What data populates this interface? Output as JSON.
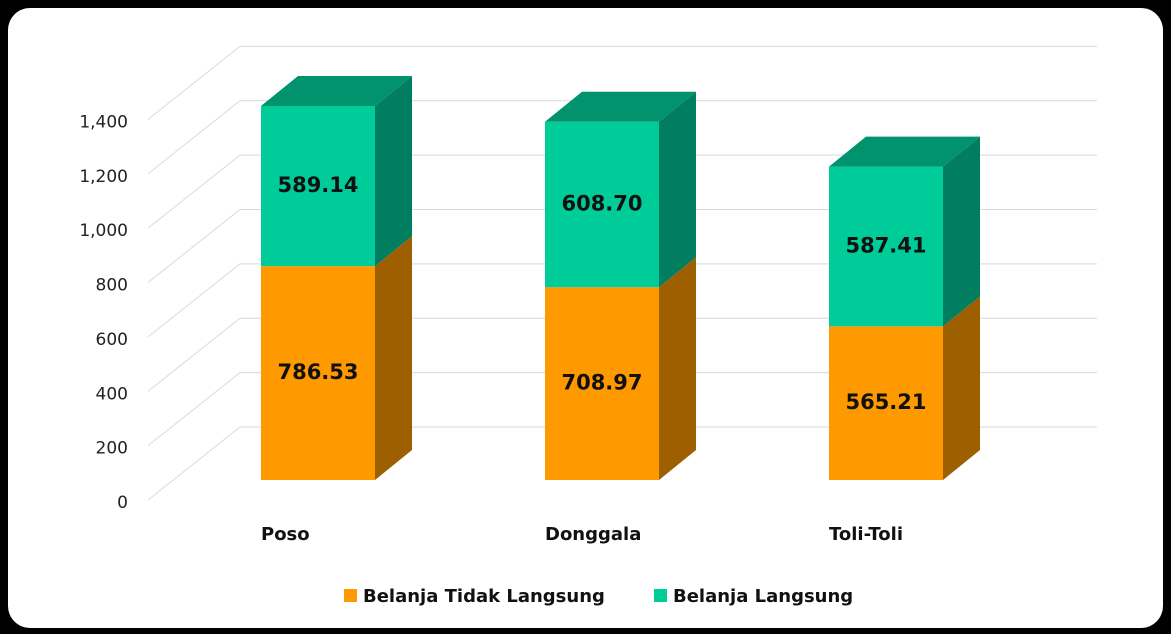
{
  "chart_data": {
    "type": "bar3d_stacked",
    "categories": [
      "Poso",
      "Donggala",
      "Toli-Toli"
    ],
    "series": [
      {
        "name": "Belanja Tidak Langsung",
        "color": "#FF9900",
        "values": [
          786.53,
          708.97,
          565.21
        ],
        "value_labels": [
          "786.53",
          "708.97",
          "565.21"
        ]
      },
      {
        "name": "Belanja Langsung",
        "color": "#00CC99",
        "values": [
          589.14,
          608.7,
          587.41
        ],
        "value_labels": [
          "589.14",
          "608.70",
          "587.41"
        ]
      }
    ],
    "ylim": [
      0,
      1400
    ],
    "yticks": [
      0,
      200,
      400,
      600,
      800,
      {
        "value": 1000,
        "label": "1,000"
      },
      {
        "value": 1200,
        "label": "1,200"
      },
      {
        "value": 1400,
        "label": "1,400"
      }
    ],
    "grid": true,
    "legend": "bottom"
  }
}
